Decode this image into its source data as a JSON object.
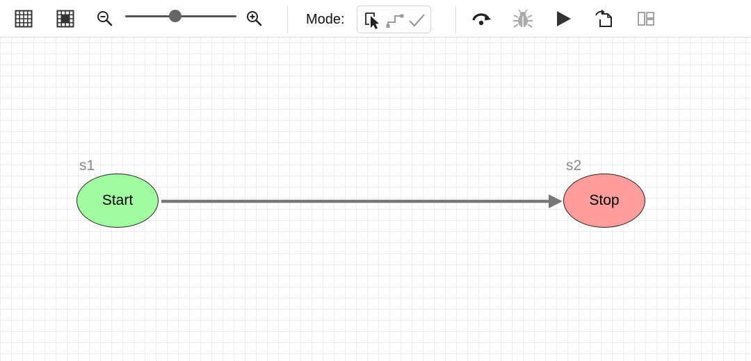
{
  "toolbar": {
    "buttons": [
      {
        "name": "grid-icon"
      },
      {
        "name": "snap-grid-icon"
      },
      {
        "name": "zoom-out-icon"
      },
      {
        "name": "zoom-in-icon"
      },
      {
        "name": "redo-icon"
      },
      {
        "name": "debug-bug-icon",
        "enabled": false
      },
      {
        "name": "play-icon"
      },
      {
        "name": "export-icon"
      },
      {
        "name": "split-view-icon",
        "enabled": false
      }
    ],
    "zoom": {
      "level": 0.45
    },
    "mode": {
      "label": "Mode:",
      "options": [
        {
          "name": "select-mode-icon",
          "active": true
        },
        {
          "name": "connect-mode-icon",
          "active": false
        },
        {
          "name": "check-mode-icon",
          "active": false
        }
      ]
    }
  },
  "diagram": {
    "states": [
      {
        "id": "s1",
        "label": "Start",
        "fill": "#a2fca2"
      },
      {
        "id": "s2",
        "label": "Stop",
        "fill": "#ff9c9c"
      }
    ],
    "transitions": [
      {
        "from": "s1",
        "to": "s2",
        "label": ""
      }
    ],
    "colors": {
      "edge": "#777777",
      "node_border": "#222222",
      "grid": "#ececec",
      "state_id": "#8a8a8a"
    }
  }
}
